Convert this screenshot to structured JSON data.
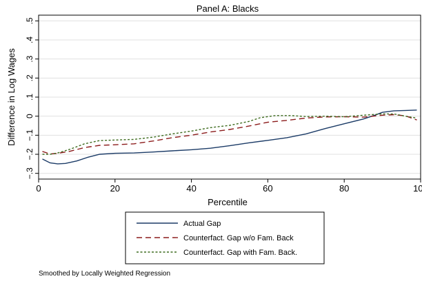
{
  "chart_data": {
    "type": "line",
    "title": "Panel A: Blacks",
    "xlabel": "Percentile",
    "ylabel": "Difference in Log Wages",
    "xlim": [
      0,
      100
    ],
    "ylim": [
      -0.33,
      0.53
    ],
    "xticks": [
      0,
      20,
      40,
      60,
      80,
      100
    ],
    "xtick_labels": [
      "0",
      "20",
      "40",
      "60",
      "80",
      "100"
    ],
    "yticks": [
      -0.3,
      -0.2,
      -0.1,
      0,
      0.1,
      0.2,
      0.3,
      0.4,
      0.5
    ],
    "ytick_labels": [
      "−.3",
      "−.2",
      "−.1",
      "0",
      ".1",
      ".2",
      ".3",
      ".4",
      ".5"
    ],
    "grid": "horizontal",
    "legend_position": "bottom",
    "note": "Smoothed by Locally Weighted Regression",
    "series": [
      {
        "name": "Actual Gap",
        "color": "#1a3a66",
        "dash": "solid",
        "x": [
          1,
          3,
          5,
          7,
          10,
          13,
          16,
          20,
          25,
          30,
          35,
          40,
          45,
          50,
          55,
          60,
          65,
          70,
          75,
          80,
          85,
          88,
          90,
          93,
          96,
          99
        ],
        "y": [
          -0.225,
          -0.245,
          -0.25,
          -0.248,
          -0.235,
          -0.215,
          -0.2,
          -0.195,
          -0.193,
          -0.188,
          -0.182,
          -0.176,
          -0.168,
          -0.155,
          -0.14,
          -0.127,
          -0.113,
          -0.093,
          -0.065,
          -0.04,
          -0.015,
          0.005,
          0.02,
          0.028,
          0.03,
          0.032
        ]
      },
      {
        "name": "Counterfact. Gap w/o Fam. Back",
        "color": "#8b1a1a",
        "dash": "dashed",
        "x": [
          1,
          3,
          5,
          8,
          12,
          16,
          20,
          25,
          30,
          35,
          40,
          45,
          50,
          55,
          60,
          65,
          70,
          75,
          80,
          85,
          90,
          93,
          96,
          99
        ],
        "y": [
          -0.185,
          -0.198,
          -0.195,
          -0.185,
          -0.165,
          -0.153,
          -0.15,
          -0.145,
          -0.13,
          -0.113,
          -0.1,
          -0.083,
          -0.07,
          -0.052,
          -0.032,
          -0.022,
          -0.01,
          -0.004,
          -0.003,
          -0.005,
          0.005,
          0.008,
          0.002,
          -0.02
        ]
      },
      {
        "name": "Counterfact. Gap with Fam. Back.",
        "color": "#3d6b1e",
        "dash": "dotted",
        "x": [
          1,
          3,
          5,
          8,
          12,
          16,
          20,
          25,
          30,
          35,
          40,
          45,
          50,
          55,
          58,
          62,
          66,
          70,
          75,
          80,
          85,
          90,
          93,
          96,
          99
        ],
        "y": [
          -0.2,
          -0.2,
          -0.193,
          -0.175,
          -0.145,
          -0.128,
          -0.125,
          -0.122,
          -0.11,
          -0.093,
          -0.078,
          -0.06,
          -0.048,
          -0.028,
          -0.008,
          0.003,
          0.003,
          -0.002,
          0.0,
          -0.003,
          0.005,
          0.012,
          0.012,
          0.0,
          -0.01
        ]
      }
    ]
  }
}
